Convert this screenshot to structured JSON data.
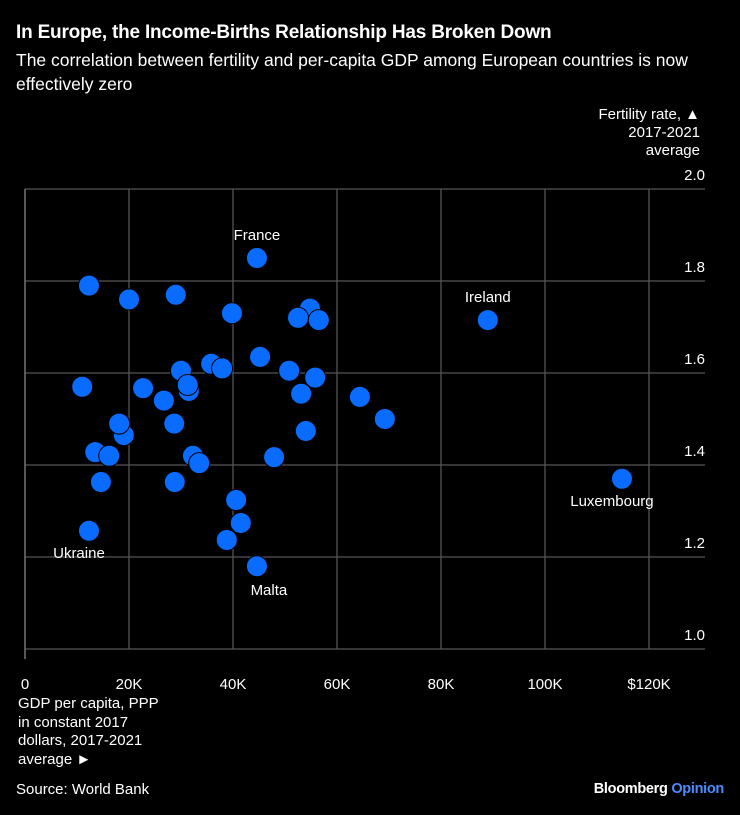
{
  "header": {
    "title": "In Europe, the Income-Births Relationship Has Broken Down",
    "subtitle": "The correlation between fertility and per-capita GDP among European countries is now effectively zero"
  },
  "footer": {
    "source": "Source: World Bank",
    "brand_name": "Bloomberg",
    "brand_suffix": "Opinion"
  },
  "colors": {
    "background": "#000000",
    "dot": "#0a6cff",
    "grid": "#555555"
  },
  "chart_data": {
    "type": "scatter",
    "title": "In Europe, the Income-Births Relationship Has Broken Down",
    "xlabel_lines": [
      "GDP per capita, PPP",
      "in constant 2017",
      "dollars, 2017-2021",
      "average ►"
    ],
    "ylabel_lines": [
      "Fertility rate, ▲",
      "2017-2021",
      "average"
    ],
    "xlim": [
      0,
      130000
    ],
    "ylim": [
      1.0,
      2.0
    ],
    "xticks": [
      {
        "v": 0,
        "label": "0"
      },
      {
        "v": 20000,
        "label": "20K"
      },
      {
        "v": 40000,
        "label": "40K"
      },
      {
        "v": 60000,
        "label": "60K"
      },
      {
        "v": 80000,
        "label": "80K"
      },
      {
        "v": 100000,
        "label": "100K"
      },
      {
        "v": 120000,
        "label": "$120K"
      }
    ],
    "yticks": [
      {
        "v": 1.0,
        "label": "1.0"
      },
      {
        "v": 1.2,
        "label": "1.2"
      },
      {
        "v": 1.4,
        "label": "1.4"
      },
      {
        "v": 1.6,
        "label": "1.6"
      },
      {
        "v": 1.8,
        "label": "1.8"
      },
      {
        "v": 2.0,
        "label": "2.0"
      }
    ],
    "grid": true,
    "points": [
      {
        "x": 44600,
        "y": 1.85,
        "label": "France",
        "pos": "above"
      },
      {
        "x": 12300,
        "y": 1.79
      },
      {
        "x": 20000,
        "y": 1.76
      },
      {
        "x": 29000,
        "y": 1.77
      },
      {
        "x": 39800,
        "y": 1.73
      },
      {
        "x": 54800,
        "y": 1.74
      },
      {
        "x": 52500,
        "y": 1.72
      },
      {
        "x": 56500,
        "y": 1.715
      },
      {
        "x": 35800,
        "y": 1.62
      },
      {
        "x": 37900,
        "y": 1.61
      },
      {
        "x": 45200,
        "y": 1.635
      },
      {
        "x": 30000,
        "y": 1.605
      },
      {
        "x": 50800,
        "y": 1.605
      },
      {
        "x": 55800,
        "y": 1.59
      },
      {
        "x": 11000,
        "y": 1.57
      },
      {
        "x": 22700,
        "y": 1.567
      },
      {
        "x": 31500,
        "y": 1.561
      },
      {
        "x": 31300,
        "y": 1.574
      },
      {
        "x": 26700,
        "y": 1.54
      },
      {
        "x": 53100,
        "y": 1.555
      },
      {
        "x": 64400,
        "y": 1.548
      },
      {
        "x": 69200,
        "y": 1.5
      },
      {
        "x": 89000,
        "y": 1.715,
        "label": "Ireland",
        "pos": "above"
      },
      {
        "x": 114800,
        "y": 1.37,
        "label": "Luxembourg",
        "pos": "below-left"
      },
      {
        "x": 28700,
        "y": 1.49
      },
      {
        "x": 19000,
        "y": 1.465
      },
      {
        "x": 18100,
        "y": 1.49
      },
      {
        "x": 13500,
        "y": 1.428
      },
      {
        "x": 16200,
        "y": 1.42
      },
      {
        "x": 32300,
        "y": 1.42
      },
      {
        "x": 33500,
        "y": 1.404
      },
      {
        "x": 47900,
        "y": 1.417
      },
      {
        "x": 54000,
        "y": 1.474
      },
      {
        "x": 14600,
        "y": 1.363
      },
      {
        "x": 28800,
        "y": 1.363
      },
      {
        "x": 40600,
        "y": 1.324
      },
      {
        "x": 41500,
        "y": 1.274
      },
      {
        "x": 38800,
        "y": 1.237
      },
      {
        "x": 12300,
        "y": 1.257,
        "label": "Ukraine",
        "pos": "below-left"
      },
      {
        "x": 44600,
        "y": 1.18,
        "label": "Malta",
        "pos": "below"
      }
    ]
  }
}
